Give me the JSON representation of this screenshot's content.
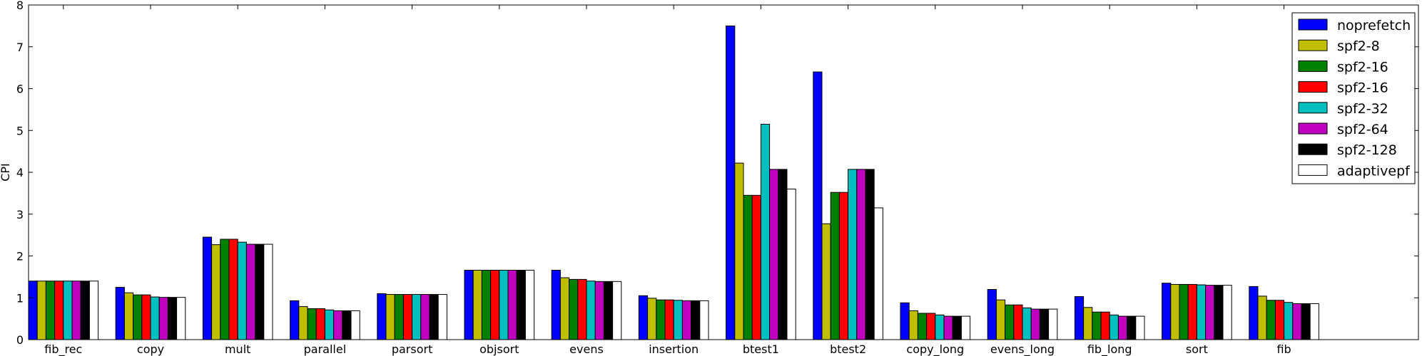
{
  "chart_data": {
    "type": "bar",
    "ylabel": "CPI",
    "xlabel": "",
    "title": "",
    "ylim": [
      0,
      8
    ],
    "yticks": [
      0,
      1,
      2,
      3,
      4,
      5,
      6,
      7,
      8
    ],
    "grid": false,
    "legend_position": "top-right",
    "categories": [
      "fib_rec",
      "copy",
      "mult",
      "parallel",
      "parsort",
      "objsort",
      "evens",
      "insertion",
      "btest1",
      "btest2",
      "copy_long",
      "evens_long",
      "fib_long",
      "sort",
      "fib"
    ],
    "series": [
      {
        "name": "noprefetch",
        "color": "#0000ff",
        "values": [
          1.4,
          1.25,
          2.45,
          0.93,
          1.1,
          1.66,
          1.66,
          1.05,
          7.5,
          6.4,
          0.88,
          1.2,
          1.03,
          1.35,
          1.27
        ]
      },
      {
        "name": "spf2-8",
        "color": "#bfbf00",
        "values": [
          1.4,
          1.12,
          2.27,
          0.79,
          1.08,
          1.66,
          1.48,
          0.99,
          4.22,
          2.77,
          0.69,
          0.95,
          0.77,
          1.32,
          1.04
        ]
      },
      {
        "name": "spf2-16",
        "color": "#008000",
        "values": [
          1.4,
          1.07,
          2.4,
          0.74,
          1.08,
          1.66,
          1.44,
          0.95,
          3.45,
          3.52,
          0.63,
          0.83,
          0.66,
          1.32,
          0.94
        ]
      },
      {
        "name": "spf2-16",
        "color": "#ff0000",
        "values": [
          1.4,
          1.07,
          2.4,
          0.74,
          1.08,
          1.66,
          1.44,
          0.95,
          3.45,
          3.52,
          0.63,
          0.83,
          0.66,
          1.32,
          0.94
        ]
      },
      {
        "name": "spf2-32",
        "color": "#00bfbf",
        "values": [
          1.4,
          1.02,
          2.33,
          0.71,
          1.08,
          1.66,
          1.4,
          0.94,
          5.15,
          4.07,
          0.59,
          0.76,
          0.59,
          1.31,
          0.89
        ]
      },
      {
        "name": "spf2-64",
        "color": "#bf00bf",
        "values": [
          1.4,
          1.01,
          2.28,
          0.69,
          1.08,
          1.66,
          1.39,
          0.93,
          4.07,
          4.07,
          0.56,
          0.73,
          0.56,
          1.3,
          0.86
        ]
      },
      {
        "name": "spf2-128",
        "color": "#000000",
        "values": [
          1.4,
          1.01,
          2.28,
          0.69,
          1.08,
          1.66,
          1.39,
          0.93,
          4.07,
          4.07,
          0.56,
          0.73,
          0.56,
          1.3,
          0.86
        ]
      },
      {
        "name": "adaptivepf",
        "color": "#ffffff",
        "values": [
          1.4,
          1.01,
          2.28,
          0.69,
          1.08,
          1.66,
          1.39,
          0.93,
          3.6,
          3.15,
          0.56,
          0.73,
          0.56,
          1.3,
          0.86
        ]
      }
    ]
  }
}
